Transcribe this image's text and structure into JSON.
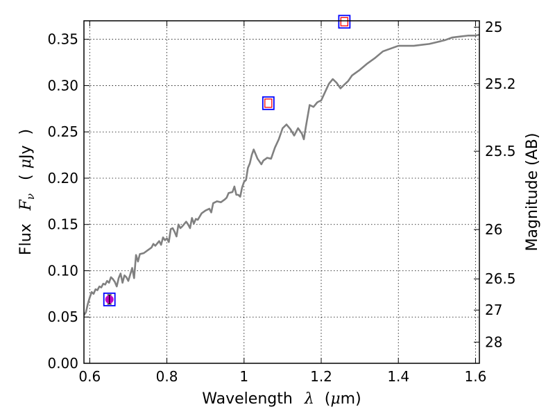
{
  "chart_data": {
    "type": "line",
    "xlabel": {
      "prefix": "Wavelength",
      "symbol": "λ",
      "unit_open": "(",
      "unit_mu": "μ",
      "unit_rest": "m)"
    },
    "ylabel": {
      "prefix": "Flux",
      "symbol": "F",
      "subscript": "ν",
      "unit_open": "(",
      "unit_mu": "μ",
      "unit_rest": "Jy",
      "unit_close": ")"
    },
    "y2label": "Magnitude (AB)",
    "xlim": [
      0.585,
      1.61
    ],
    "ylim": [
      0.0,
      0.37
    ],
    "grid": true,
    "x_ticks": [
      {
        "value": 0.6,
        "label": "0.6"
      },
      {
        "value": 0.8,
        "label": "0.8"
      },
      {
        "value": 1.0,
        "label": "1"
      },
      {
        "value": 1.2,
        "label": "1.2"
      },
      {
        "value": 1.4,
        "label": "1.4"
      },
      {
        "value": 1.6,
        "label": "1.6"
      }
    ],
    "y_ticks": [
      {
        "value": 0.0,
        "label": "0.00"
      },
      {
        "value": 0.05,
        "label": "0.05"
      },
      {
        "value": 0.1,
        "label": "0.10"
      },
      {
        "value": 0.15,
        "label": "0.15"
      },
      {
        "value": 0.2,
        "label": "0.20"
      },
      {
        "value": 0.25,
        "label": "0.25"
      },
      {
        "value": 0.3,
        "label": "0.30"
      },
      {
        "value": 0.35,
        "label": "0.35"
      }
    ],
    "y2_ticks": [
      {
        "flux": 0.3631,
        "label": "25"
      },
      {
        "flux": 0.302,
        "label": "25.2"
      },
      {
        "flux": 0.2291,
        "label": "25.5"
      },
      {
        "flux": 0.1445,
        "label": "26"
      },
      {
        "flux": 0.0912,
        "label": "26.5"
      },
      {
        "flux": 0.0575,
        "label": "27"
      },
      {
        "flux": 0.0229,
        "label": "28"
      }
    ],
    "series": [
      {
        "color": "#808080",
        "points": [
          [
            0.585,
            0.052
          ],
          [
            0.59,
            0.055
          ],
          [
            0.595,
            0.064
          ],
          [
            0.6,
            0.071
          ],
          [
            0.605,
            0.077
          ],
          [
            0.61,
            0.075
          ],
          [
            0.615,
            0.08
          ],
          [
            0.62,
            0.079
          ],
          [
            0.625,
            0.083
          ],
          [
            0.63,
            0.082
          ],
          [
            0.635,
            0.086
          ],
          [
            0.64,
            0.085
          ],
          [
            0.645,
            0.089
          ],
          [
            0.65,
            0.087
          ],
          [
            0.655,
            0.093
          ],
          [
            0.66,
            0.091
          ],
          [
            0.665,
            0.088
          ],
          [
            0.67,
            0.083
          ],
          [
            0.675,
            0.092
          ],
          [
            0.68,
            0.097
          ],
          [
            0.685,
            0.087
          ],
          [
            0.69,
            0.095
          ],
          [
            0.695,
            0.093
          ],
          [
            0.7,
            0.089
          ],
          [
            0.705,
            0.096
          ],
          [
            0.71,
            0.103
          ],
          [
            0.715,
            0.092
          ],
          [
            0.72,
            0.117
          ],
          [
            0.725,
            0.11
          ],
          [
            0.73,
            0.118
          ],
          [
            0.74,
            0.119
          ],
          [
            0.75,
            0.122
          ],
          [
            0.76,
            0.125
          ],
          [
            0.765,
            0.129
          ],
          [
            0.77,
            0.127
          ],
          [
            0.78,
            0.132
          ],
          [
            0.785,
            0.128
          ],
          [
            0.79,
            0.136
          ],
          [
            0.795,
            0.133
          ],
          [
            0.8,
            0.135
          ],
          [
            0.805,
            0.131
          ],
          [
            0.81,
            0.145
          ],
          [
            0.815,
            0.146
          ],
          [
            0.82,
            0.142
          ],
          [
            0.825,
            0.137
          ],
          [
            0.83,
            0.15
          ],
          [
            0.835,
            0.146
          ],
          [
            0.84,
            0.148
          ],
          [
            0.85,
            0.153
          ],
          [
            0.855,
            0.15
          ],
          [
            0.86,
            0.146
          ],
          [
            0.865,
            0.157
          ],
          [
            0.87,
            0.151
          ],
          [
            0.875,
            0.156
          ],
          [
            0.88,
            0.155
          ],
          [
            0.89,
            0.162
          ],
          [
            0.9,
            0.165
          ],
          [
            0.91,
            0.167
          ],
          [
            0.915,
            0.163
          ],
          [
            0.92,
            0.173
          ],
          [
            0.93,
            0.175
          ],
          [
            0.94,
            0.174
          ],
          [
            0.95,
            0.177
          ],
          [
            0.955,
            0.179
          ],
          [
            0.96,
            0.184
          ],
          [
            0.97,
            0.185
          ],
          [
            0.975,
            0.191
          ],
          [
            0.98,
            0.182
          ],
          [
            0.985,
            0.182
          ],
          [
            0.99,
            0.18
          ],
          [
            0.995,
            0.19
          ],
          [
            1.0,
            0.196
          ],
          [
            1.005,
            0.198
          ],
          [
            1.01,
            0.211
          ],
          [
            1.015,
            0.216
          ],
          [
            1.02,
            0.225
          ],
          [
            1.025,
            0.231
          ],
          [
            1.03,
            0.226
          ],
          [
            1.035,
            0.221
          ],
          [
            1.04,
            0.218
          ],
          [
            1.045,
            0.215
          ],
          [
            1.05,
            0.219
          ],
          [
            1.06,
            0.222
          ],
          [
            1.07,
            0.221
          ],
          [
            1.08,
            0.233
          ],
          [
            1.09,
            0.242
          ],
          [
            1.1,
            0.254
          ],
          [
            1.11,
            0.258
          ],
          [
            1.12,
            0.253
          ],
          [
            1.13,
            0.246
          ],
          [
            1.14,
            0.254
          ],
          [
            1.15,
            0.248
          ],
          [
            1.155,
            0.242
          ],
          [
            1.16,
            0.255
          ],
          [
            1.17,
            0.279
          ],
          [
            1.18,
            0.277
          ],
          [
            1.19,
            0.282
          ],
          [
            1.2,
            0.284
          ],
          [
            1.21,
            0.293
          ],
          [
            1.22,
            0.302
          ],
          [
            1.23,
            0.307
          ],
          [
            1.24,
            0.303
          ],
          [
            1.25,
            0.297
          ],
          [
            1.26,
            0.301
          ],
          [
            1.27,
            0.305
          ],
          [
            1.28,
            0.311
          ],
          [
            1.3,
            0.317
          ],
          [
            1.32,
            0.324
          ],
          [
            1.34,
            0.33
          ],
          [
            1.36,
            0.337
          ],
          [
            1.38,
            0.34
          ],
          [
            1.4,
            0.343
          ],
          [
            1.42,
            0.343
          ],
          [
            1.44,
            0.343
          ],
          [
            1.46,
            0.344
          ],
          [
            1.48,
            0.345
          ],
          [
            1.5,
            0.347
          ],
          [
            1.52,
            0.349
          ],
          [
            1.54,
            0.352
          ],
          [
            1.56,
            0.353
          ],
          [
            1.58,
            0.354
          ],
          [
            1.6,
            0.354
          ],
          [
            1.61,
            0.355
          ]
        ]
      }
    ],
    "photometry": [
      {
        "x": 0.651,
        "y": 0.069,
        "marker": "filled-circle",
        "errorbar": [
          0.064,
          0.074
        ]
      },
      {
        "x": 1.063,
        "y": 0.281,
        "marker": "open-square"
      },
      {
        "x": 1.26,
        "y": 0.369,
        "marker": "open-square"
      }
    ],
    "colors": {
      "line": "#808080",
      "box_outline": "#0000ff",
      "square_fill": "#ff0000",
      "point_fill": "#bf00bf",
      "grid": "#000000"
    }
  }
}
